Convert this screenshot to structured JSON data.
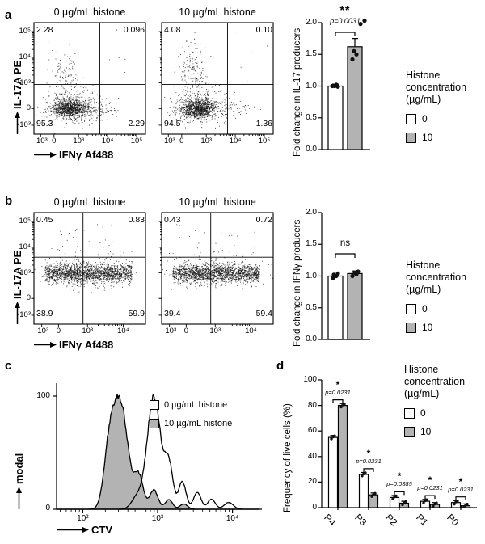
{
  "panel_labels": {
    "a": "a",
    "b": "b",
    "c": "c",
    "d": "d"
  },
  "shared_legend": {
    "title_lines": [
      "Histone",
      "concentration",
      "(µg/mL)"
    ],
    "items": [
      {
        "label": "0",
        "fill": "#ffffff"
      },
      {
        "label": "10",
        "fill": "#b3b3b3"
      }
    ]
  },
  "chart_data": [
    {
      "id": "a_flow_0",
      "type": "scatter",
      "panel": "a",
      "title": "0 µg/mL histone",
      "xlabel": "IFNγ Af488",
      "ylabel": "IL-17A PE",
      "x_ticks": [
        "-10³",
        "0",
        "10³",
        "10⁴",
        "10⁵"
      ],
      "x_tick_pos": [
        0.06,
        0.18,
        0.4,
        0.66,
        0.92
      ],
      "y_ticks": [
        "10⁵",
        "10⁴",
        "10³",
        "0",
        "-10³"
      ],
      "y_tick_pos": [
        0.08,
        0.31,
        0.54,
        0.77,
        0.92
      ],
      "quadrants": {
        "tl": "2.28",
        "tr": "0.096",
        "bl": "95.3",
        "br": "2.29"
      },
      "gate": {
        "x": 0.59,
        "y": 0.555
      },
      "seed": 11,
      "populations": [
        {
          "t": "g",
          "cx": 0.32,
          "cy": 0.775,
          "sx": 0.085,
          "sy": 0.042,
          "n": 1000
        },
        {
          "t": "g",
          "cx": 0.35,
          "cy": 0.74,
          "sx": 0.15,
          "sy": 0.09,
          "n": 260
        },
        {
          "t": "g",
          "cx": 0.285,
          "cy": 0.46,
          "sx": 0.07,
          "sy": 0.13,
          "n": 115
        },
        {
          "t": "g",
          "cx": 0.6,
          "cy": 0.775,
          "sx": 0.1,
          "sy": 0.045,
          "n": 75
        },
        {
          "t": "u",
          "x0": 0.62,
          "x1": 0.95,
          "y0": 0.06,
          "y1": 0.5,
          "n": 6
        }
      ]
    },
    {
      "id": "a_flow_1",
      "type": "scatter",
      "panel": "a",
      "title": "10 µg/mL histone",
      "xlabel": "IFNγ Af488",
      "ylabel": "IL-17A PE",
      "x_ticks": [
        "-10³",
        "0",
        "10³",
        "10⁴",
        "10⁵"
      ],
      "x_tick_pos": [
        0.06,
        0.18,
        0.4,
        0.66,
        0.92
      ],
      "y_ticks": [
        "10⁵",
        "10⁴",
        "10³",
        "0",
        "-10³"
      ],
      "y_tick_pos": [
        0.08,
        0.31,
        0.54,
        0.77,
        0.92
      ],
      "quadrants": {
        "tl": "4.08",
        "tr": "0.10",
        "bl": "94.5",
        "br": "1.36"
      },
      "gate": {
        "x": 0.59,
        "y": 0.555
      },
      "seed": 22,
      "populations": [
        {
          "t": "g",
          "cx": 0.32,
          "cy": 0.775,
          "sx": 0.085,
          "sy": 0.042,
          "n": 950
        },
        {
          "t": "g",
          "cx": 0.35,
          "cy": 0.74,
          "sx": 0.15,
          "sy": 0.09,
          "n": 260
        },
        {
          "t": "g",
          "cx": 0.285,
          "cy": 0.44,
          "sx": 0.07,
          "sy": 0.145,
          "n": 185
        },
        {
          "t": "g",
          "cx": 0.6,
          "cy": 0.775,
          "sx": 0.1,
          "sy": 0.045,
          "n": 55
        },
        {
          "t": "u",
          "x0": 0.62,
          "x1": 0.95,
          "y0": 0.06,
          "y1": 0.5,
          "n": 5
        }
      ]
    },
    {
      "id": "a_bar",
      "type": "bar",
      "panel": "a",
      "ylabel": "Fold change in IL-17 producers",
      "y_ticks": [
        "0.0",
        "0.5",
        "1.0",
        "1.5",
        "2.0"
      ],
      "ylim": [
        0,
        2
      ],
      "categories": [
        "0",
        "10"
      ],
      "fills": [
        "#ffffff",
        "#b3b3b3"
      ],
      "values": [
        1.0,
        1.62
      ],
      "errors": [
        0.03,
        0.13
      ],
      "points": [
        [
          [
            1.0,
            -4
          ],
          [
            1.0,
            -1
          ],
          [
            0.99,
            3
          ],
          [
            1.02,
            1
          ]
        ],
        [
          [
            1.42,
            -3
          ],
          [
            1.5,
            2
          ],
          [
            1.55,
            -1
          ],
          [
            1.98,
            7
          ],
          [
            2.03,
            12
          ]
        ]
      ],
      "sig": {
        "star": "**",
        "p": "p=0.0031"
      }
    },
    {
      "id": "b_flow_0",
      "type": "scatter",
      "panel": "b",
      "title": "0 µg/mL histone",
      "xlabel": "IFNγ Af488",
      "ylabel": "IL-17A PE",
      "x_ticks": [
        "-10³",
        "0",
        "10³",
        "10⁴"
      ],
      "x_tick_pos": [
        0.07,
        0.22,
        0.48,
        0.8
      ],
      "y_ticks": [
        "10⁵",
        "10⁴",
        "10³",
        "0",
        "-10³"
      ],
      "y_tick_pos": [
        0.08,
        0.31,
        0.54,
        0.77,
        0.92
      ],
      "quadrants": {
        "tl": "0.45",
        "tr": "0.83",
        "bl": "38.9",
        "br": "59.9"
      },
      "gate": {
        "x": 0.44,
        "y": 0.4
      },
      "seed": 33,
      "populations": [
        {
          "t": "bx",
          "x0": 0.1,
          "x1": 0.88,
          "cy": 0.545,
          "sy": 0.04,
          "n": 1500
        },
        {
          "t": "g",
          "cx": 0.45,
          "cy": 0.535,
          "sx": 0.21,
          "sy": 0.07,
          "n": 400
        },
        {
          "t": "u",
          "x0": 0.1,
          "x1": 0.85,
          "y0": 0.1,
          "y1": 0.38,
          "n": 28
        }
      ]
    },
    {
      "id": "b_flow_1",
      "type": "scatter",
      "panel": "b",
      "title": "10 µg/mL histone",
      "xlabel": "IFNγ Af488",
      "ylabel": "IL-17A PE",
      "x_ticks": [
        "-10³",
        "0",
        "10³",
        "10⁴"
      ],
      "x_tick_pos": [
        0.07,
        0.22,
        0.48,
        0.8
      ],
      "y_ticks": [
        "10⁵",
        "10⁴",
        "10³",
        "0",
        "-10³"
      ],
      "y_tick_pos": [
        0.08,
        0.31,
        0.54,
        0.77,
        0.92
      ],
      "quadrants": {
        "tl": "0.43",
        "tr": "0.72",
        "bl": "39.4",
        "br": "59.4"
      },
      "gate": {
        "x": 0.44,
        "y": 0.4
      },
      "seed": 44,
      "populations": [
        {
          "t": "bx",
          "x0": 0.1,
          "x1": 0.88,
          "cy": 0.545,
          "sy": 0.04,
          "n": 1500
        },
        {
          "t": "g",
          "cx": 0.46,
          "cy": 0.535,
          "sx": 0.21,
          "sy": 0.07,
          "n": 400
        },
        {
          "t": "u",
          "x0": 0.1,
          "x1": 0.85,
          "y0": 0.1,
          "y1": 0.38,
          "n": 26
        }
      ]
    },
    {
      "id": "b_bar",
      "type": "bar",
      "panel": "b",
      "ylabel": "Fold change in IFNγ producers",
      "y_ticks": [
        "0.0",
        "0.5",
        "1.0",
        "1.5",
        "2.0"
      ],
      "ylim": [
        0,
        2
      ],
      "categories": [
        "0",
        "10"
      ],
      "fills": [
        "#ffffff",
        "#b3b3b3"
      ],
      "values": [
        1.0,
        1.04
      ],
      "errors": [
        0.02,
        0.04
      ],
      "points": [
        [
          [
            0.97,
            -3
          ],
          [
            1.0,
            1
          ],
          [
            1.02,
            -2
          ],
          [
            1.04,
            3
          ]
        ],
        [
          [
            1.0,
            -3
          ],
          [
            1.03,
            2
          ],
          [
            1.05,
            0
          ],
          [
            1.07,
            4
          ]
        ]
      ],
      "sig": {
        "star": "ns",
        "p": ""
      }
    },
    {
      "id": "c_hist",
      "type": "area",
      "panel": "c",
      "xlabel": "CTV",
      "ylabel": "modal",
      "x_ticks": [
        "10²",
        "10³",
        "10⁴"
      ],
      "y_ticks": [
        "100",
        "0"
      ],
      "xlog_range": [
        1.65,
        4.35
      ],
      "series": [
        {
          "name": "0 µg/mL histone",
          "fill": "#ffffff",
          "peaks": [
            {
              "c": 2.95,
              "h": 100,
              "w": 0.09
            },
            {
              "c": 2.72,
              "h": 10,
              "w": 0.07
            },
            {
              "c": 3.15,
              "h": 38,
              "w": 0.055
            },
            {
              "c": 3.33,
              "h": 24,
              "w": 0.05
            },
            {
              "c": 3.53,
              "h": 15,
              "w": 0.05
            },
            {
              "c": 3.72,
              "h": 9,
              "w": 0.05
            },
            {
              "c": 3.95,
              "h": 6,
              "w": 0.06
            }
          ]
        },
        {
          "name": "10 µg/mL histone",
          "fill": "#b3b3b3",
          "peaks": [
            {
              "c": 2.5,
              "h": 100,
              "w": 0.1
            },
            {
              "c": 2.35,
              "h": 45,
              "w": 0.07
            },
            {
              "c": 2.75,
              "h": 30,
              "w": 0.06
            },
            {
              "c": 2.95,
              "h": 18,
              "w": 0.055
            },
            {
              "c": 3.15,
              "h": 9,
              "w": 0.05
            },
            {
              "c": 3.35,
              "h": 5,
              "w": 0.05
            }
          ]
        }
      ]
    },
    {
      "id": "d_bar",
      "type": "bar",
      "panel": "d",
      "ylabel": "Frequency of live cells (%)",
      "y_ticks": [
        "0",
        "20",
        "40",
        "60",
        "80",
        "100"
      ],
      "ylim": [
        0,
        100
      ],
      "categories": [
        "P4",
        "P3",
        "P2",
        "P1",
        "P0"
      ],
      "err": 1.5,
      "series": [
        {
          "name": "0",
          "fill": "#ffffff",
          "values": [
            55,
            26,
            8,
            5,
            4
          ]
        },
        {
          "name": "10",
          "fill": "#b3b3b3",
          "values": [
            80,
            10,
            3.5,
            2.5,
            1.5
          ]
        }
      ],
      "sig": [
        {
          "star": "*",
          "p": "p=0.0231"
        },
        {
          "star": "*",
          "p": "p=0.0231"
        },
        {
          "star": "*",
          "p": "p=0.0385"
        },
        {
          "star": "*",
          "p": "p=0.0231"
        },
        {
          "star": "*",
          "p": "p=0.0231"
        }
      ]
    }
  ]
}
